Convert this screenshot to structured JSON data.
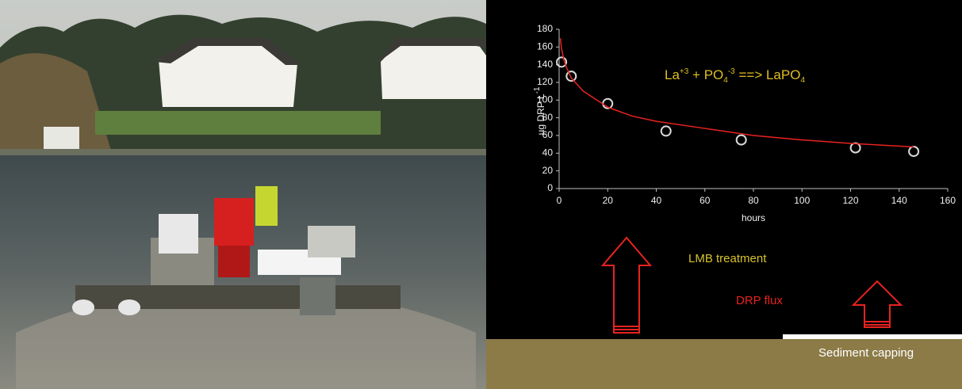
{
  "chart_data": {
    "type": "scatter",
    "ylabel": [
      {
        "text": "µg DRP L"
      },
      {
        "text": "-1",
        "shift": "super"
      }
    ],
    "xlabel": "hours",
    "xlim": [
      0,
      160
    ],
    "ylim": [
      0,
      180
    ],
    "xticks": [
      0,
      20,
      40,
      60,
      80,
      100,
      120,
      140,
      160
    ],
    "yticks": [
      0,
      20,
      40,
      60,
      80,
      100,
      120,
      140,
      160,
      180
    ],
    "series": [
      {
        "type": "scatter",
        "color": "#d9d9d9",
        "x": [
          1,
          5,
          20,
          44,
          75,
          122,
          146
        ],
        "values": [
          143,
          127,
          96,
          65,
          55,
          46,
          42
        ]
      },
      {
        "type": "line",
        "color": "#e8231f",
        "x": [
          0.5,
          1,
          2,
          3,
          5,
          10,
          20,
          30,
          40,
          60,
          80,
          100,
          120,
          146
        ],
        "values": [
          170,
          158,
          145,
          137,
          125,
          110,
          92,
          82,
          76,
          68,
          60,
          55,
          51,
          47
        ]
      }
    ],
    "formula": [
      {
        "text": "La"
      },
      {
        "text": "+3",
        "shift": "super"
      },
      {
        "text": " + PO"
      },
      {
        "text": "4",
        "shift": "sub"
      },
      {
        "text": "-3",
        "shift": "super"
      },
      {
        "text": " ==> LaPO"
      },
      {
        "text": "4",
        "shift": "sub"
      }
    ],
    "annotations": [
      "LMB treatment",
      "DRP flux",
      "Sediment capping"
    ]
  }
}
